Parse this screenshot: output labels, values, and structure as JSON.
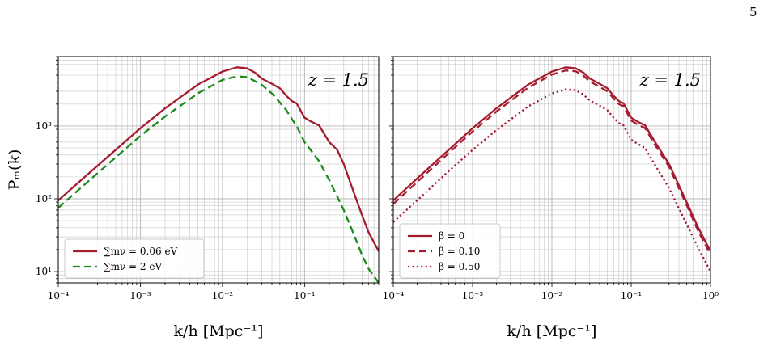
{
  "page_number": "5",
  "colors": {
    "red": "#a51c30",
    "green": "#1a8a1a",
    "grid": "#b0b0b0"
  },
  "chart_data": [
    {
      "type": "line",
      "log_x": true,
      "log_y": true,
      "xlim": [
        0.0001,
        0.8
      ],
      "ylim": [
        7,
        9000
      ],
      "grid": true,
      "xlabel": "k/h [Mpc⁻¹]",
      "ylabel": "Pₘ(k)",
      "annotation": "z = 1.5",
      "legend_placement": "lower-left",
      "x_ticks": [
        {
          "value": 0.0001,
          "label": "10⁻⁴"
        },
        {
          "value": 0.001,
          "label": "10⁻³"
        },
        {
          "value": 0.01,
          "label": "10⁻²"
        },
        {
          "value": 0.1,
          "label": "10⁻¹"
        }
      ],
      "y_ticks": [
        {
          "value": 10,
          "label": "10¹"
        },
        {
          "value": 100,
          "label": "10²"
        },
        {
          "value": 1000,
          "label": "10³"
        }
      ],
      "series": [
        {
          "name": "∑mν = 0.06 eV",
          "color": "#a51c30",
          "style": "solid",
          "x": [
            0.0001,
            0.0002,
            0.0005,
            0.001,
            0.002,
            0.005,
            0.01,
            0.015,
            0.02,
            0.025,
            0.03,
            0.04,
            0.05,
            0.06,
            0.07,
            0.08,
            0.1,
            0.12,
            0.15,
            0.2,
            0.25,
            0.3,
            0.4,
            0.5,
            0.6,
            0.8
          ],
          "y": [
            95,
            190,
            470,
            930,
            1750,
            3700,
            5600,
            6400,
            6200,
            5400,
            4500,
            3800,
            3300,
            2600,
            2200,
            2050,
            1300,
            1150,
            1020,
            600,
            470,
            300,
            120,
            60,
            35,
            19
          ]
        },
        {
          "name": "∑mν = 2 eV",
          "color": "#1a8a1a",
          "style": "dashed",
          "x": [
            0.0001,
            0.0002,
            0.0005,
            0.001,
            0.002,
            0.005,
            0.01,
            0.015,
            0.02,
            0.03,
            0.04,
            0.05,
            0.06,
            0.07,
            0.08,
            0.1,
            0.15,
            0.2,
            0.3,
            0.4,
            0.5,
            0.6,
            0.8
          ],
          "y": [
            75,
            150,
            370,
            730,
            1350,
            2800,
            4300,
            4800,
            4700,
            3700,
            2800,
            2100,
            1650,
            1250,
            1000,
            600,
            330,
            180,
            70,
            32,
            17,
            11,
            7
          ]
        }
      ]
    },
    {
      "type": "line",
      "log_x": true,
      "log_y": true,
      "xlim": [
        0.0001,
        1
      ],
      "ylim": [
        7,
        9000
      ],
      "grid": true,
      "xlabel": "k/h [Mpc⁻¹]",
      "annotation": "z = 1.5",
      "legend_placement": "lower-left",
      "x_ticks": [
        {
          "value": 0.0001,
          "label": "10⁻⁴"
        },
        {
          "value": 0.001,
          "label": "10⁻³"
        },
        {
          "value": 0.01,
          "label": "10⁻²"
        },
        {
          "value": 0.1,
          "label": "10⁻¹"
        },
        {
          "value": 1,
          "label": "10⁰"
        }
      ],
      "series": [
        {
          "name": "β = 0",
          "color": "#a51c30",
          "style": "solid",
          "x": [
            0.0001,
            0.0002,
            0.0005,
            0.001,
            0.002,
            0.005,
            0.01,
            0.015,
            0.02,
            0.025,
            0.03,
            0.04,
            0.05,
            0.06,
            0.07,
            0.08,
            0.1,
            0.12,
            0.15,
            0.2,
            0.3,
            0.5,
            0.7,
            1.0
          ],
          "y": [
            95,
            190,
            470,
            930,
            1750,
            3700,
            5600,
            6400,
            6200,
            5400,
            4500,
            3800,
            3300,
            2600,
            2200,
            2050,
            1300,
            1150,
            1020,
            600,
            300,
            90,
            40,
            19
          ]
        },
        {
          "name": "β = 0.10",
          "color": "#a51c30",
          "style": "dashed",
          "x": [
            0.0001,
            0.0002,
            0.0005,
            0.001,
            0.002,
            0.005,
            0.01,
            0.015,
            0.02,
            0.025,
            0.03,
            0.04,
            0.05,
            0.06,
            0.07,
            0.08,
            0.1,
            0.12,
            0.15,
            0.2,
            0.3,
            0.5,
            0.7,
            1.0
          ],
          "y": [
            85,
            170,
            425,
            840,
            1580,
            3350,
            5100,
            5800,
            5650,
            4900,
            4100,
            3450,
            3000,
            2380,
            2000,
            1870,
            1190,
            1050,
            930,
            550,
            275,
            82,
            36,
            17
          ]
        },
        {
          "name": "β = 0.50",
          "color": "#a51c30",
          "style": "dotted",
          "x": [
            0.0001,
            0.0002,
            0.0005,
            0.001,
            0.002,
            0.005,
            0.01,
            0.015,
            0.02,
            0.025,
            0.03,
            0.04,
            0.05,
            0.06,
            0.07,
            0.08,
            0.1,
            0.12,
            0.15,
            0.2,
            0.3,
            0.5,
            0.7,
            1.0
          ],
          "y": [
            48,
            95,
            240,
            470,
            880,
            1850,
            2800,
            3200,
            3100,
            2700,
            2250,
            1900,
            1650,
            1300,
            1100,
            1020,
            650,
            570,
            500,
            290,
            140,
            45,
            21,
            10
          ]
        }
      ]
    }
  ]
}
